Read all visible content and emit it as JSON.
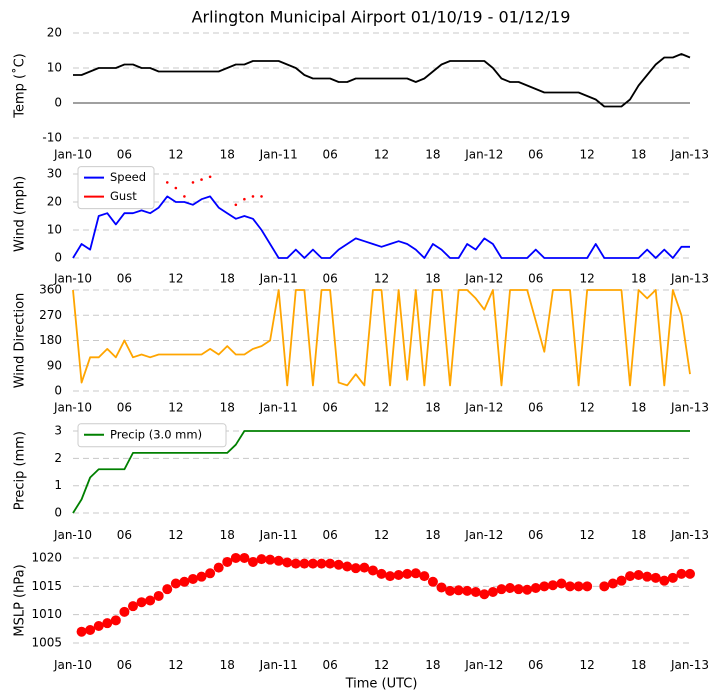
{
  "chart_data": [
    {
      "type": "line",
      "title": "Arlington Municipal Airport 01/10/19 - 01/12/19",
      "ylabel": "Temp (˚C)",
      "color": "#000000",
      "zero_line": true,
      "grid": true,
      "x": [
        0,
        1,
        2,
        3,
        4,
        5,
        6,
        7,
        8,
        9,
        10,
        11,
        12,
        13,
        14,
        15,
        16,
        17,
        18,
        19,
        20,
        21,
        22,
        23,
        24,
        25,
        26,
        27,
        28,
        29,
        30,
        31,
        32,
        33,
        34,
        35,
        36,
        37,
        38,
        39,
        40,
        41,
        42,
        43,
        44,
        45,
        46,
        47,
        48,
        49,
        50,
        51,
        52,
        53,
        54,
        55,
        56,
        57,
        58,
        59,
        60,
        61,
        62,
        63,
        64,
        65,
        66,
        67,
        68,
        69,
        70,
        71,
        72
      ],
      "values": [
        8,
        8,
        9,
        10,
        10,
        10,
        11,
        11,
        10,
        10,
        9,
        9,
        9,
        9,
        9,
        9,
        9,
        9,
        10,
        11,
        11,
        12,
        12,
        12,
        12,
        11,
        10,
        8,
        7,
        7,
        7,
        6,
        6,
        7,
        7,
        7,
        7,
        7,
        7,
        7,
        6,
        7,
        9,
        11,
        12,
        12,
        12,
        12,
        12,
        10,
        7,
        6,
        6,
        5,
        4,
        3,
        3,
        3,
        3,
        3,
        2,
        1,
        -1,
        -1,
        -1,
        1,
        5,
        8,
        11,
        13,
        13,
        14,
        13
      ],
      "xlim": [
        0,
        72
      ],
      "xticks": [
        {
          "value": 0,
          "label": "Jan-10"
        },
        {
          "value": 6,
          "label": "06"
        },
        12,
        18,
        {
          "value": 24,
          "label": "Jan-11"
        },
        {
          "value": 30,
          "label": "06"
        },
        {
          "value": 36,
          "label": "12"
        },
        {
          "value": 42,
          "label": "18"
        },
        {
          "value": 48,
          "label": "Jan-12"
        },
        {
          "value": 54,
          "label": "06"
        },
        {
          "value": 60,
          "label": "12"
        },
        {
          "value": 66,
          "label": "18"
        },
        {
          "value": 72,
          "label": "Jan-13"
        }
      ],
      "ylim": [
        -10,
        20
      ],
      "yticks": [
        -10,
        0,
        10,
        20
      ]
    },
    {
      "type": "line",
      "ylabel": "Wind (mph)",
      "grid": true,
      "legend": "upper left",
      "x": [
        0,
        1,
        2,
        3,
        4,
        5,
        6,
        7,
        8,
        9,
        10,
        11,
        12,
        13,
        14,
        15,
        16,
        17,
        18,
        19,
        20,
        21,
        22,
        23,
        24,
        25,
        26,
        27,
        28,
        29,
        30,
        31,
        32,
        33,
        34,
        35,
        36,
        37,
        38,
        39,
        40,
        41,
        42,
        43,
        44,
        45,
        46,
        47,
        48,
        49,
        50,
        51,
        52,
        53,
        54,
        55,
        56,
        57,
        58,
        59,
        60,
        61,
        62,
        63,
        64,
        65,
        66,
        67,
        68,
        69,
        70,
        71,
        72
      ],
      "series": [
        {
          "name": "Speed",
          "color": "#0000ff",
          "style": "line",
          "values": [
            0,
            5,
            3,
            15,
            16,
            12,
            16,
            16,
            17,
            16,
            18,
            22,
            20,
            20,
            19,
            21,
            22,
            18,
            16,
            14,
            15,
            14,
            10,
            5,
            0,
            0,
            3,
            0,
            3,
            0,
            0,
            3,
            5,
            7,
            6,
            5,
            4,
            5,
            6,
            5,
            3,
            0,
            5,
            3,
            0,
            0,
            5,
            3,
            7,
            5,
            0,
            0,
            0,
            0,
            3,
            0,
            0,
            0,
            0,
            0,
            0,
            5,
            0,
            0,
            0,
            0,
            0,
            3,
            0,
            3,
            0,
            4,
            4
          ]
        },
        {
          "name": "Gust",
          "color": "#ff0000",
          "style": "dots",
          "values": [
            null,
            null,
            null,
            null,
            null,
            null,
            null,
            null,
            null,
            null,
            null,
            27,
            25,
            22,
            27,
            28,
            29,
            null,
            null,
            19,
            21,
            22,
            22,
            null,
            null,
            null,
            null,
            null,
            null,
            null,
            null,
            null,
            null,
            null,
            null,
            null,
            null,
            null,
            null,
            null,
            null,
            null,
            null,
            null,
            null,
            null,
            null,
            null,
            null,
            null,
            null,
            null,
            null,
            null,
            null,
            null,
            null,
            null,
            null,
            null,
            null,
            null,
            null,
            null,
            null,
            null,
            null,
            null,
            null,
            null,
            null,
            null,
            null
          ]
        }
      ],
      "xlim": [
        0,
        72
      ],
      "xticks": [
        {
          "value": 0,
          "label": "Jan-10"
        },
        {
          "value": 6,
          "label": "06"
        },
        12,
        18,
        {
          "value": 24,
          "label": "Jan-11"
        },
        {
          "value": 30,
          "label": "06"
        },
        {
          "value": 36,
          "label": "12"
        },
        {
          "value": 42,
          "label": "18"
        },
        {
          "value": 48,
          "label": "Jan-12"
        },
        {
          "value": 54,
          "label": "06"
        },
        {
          "value": 60,
          "label": "12"
        },
        {
          "value": 66,
          "label": "18"
        },
        {
          "value": 72,
          "label": "Jan-13"
        }
      ],
      "ylim": [
        -1.5,
        33
      ],
      "yticks": [
        0,
        10,
        20,
        30
      ]
    },
    {
      "type": "line",
      "ylabel": "Wind Direction",
      "color": "#ffa500",
      "grid": true,
      "x": [
        0,
        1,
        2,
        3,
        4,
        5,
        6,
        7,
        8,
        9,
        10,
        11,
        12,
        13,
        14,
        15,
        16,
        17,
        18,
        19,
        20,
        21,
        22,
        23,
        24,
        25,
        26,
        27,
        28,
        29,
        30,
        31,
        32,
        33,
        34,
        35,
        36,
        37,
        38,
        39,
        40,
        41,
        42,
        43,
        44,
        45,
        46,
        47,
        48,
        49,
        50,
        51,
        52,
        53,
        54,
        55,
        56,
        57,
        58,
        59,
        60,
        61,
        62,
        63,
        64,
        65,
        66,
        67,
        68,
        69,
        70,
        71,
        72
      ],
      "values": [
        360,
        30,
        120,
        120,
        150,
        120,
        180,
        120,
        130,
        120,
        130,
        130,
        130,
        130,
        130,
        130,
        150,
        130,
        160,
        130,
        130,
        150,
        160,
        180,
        360,
        20,
        360,
        360,
        20,
        360,
        360,
        30,
        20,
        60,
        20,
        360,
        360,
        20,
        360,
        40,
        360,
        20,
        360,
        360,
        20,
        360,
        360,
        330,
        290,
        360,
        20,
        360,
        360,
        360,
        250,
        140,
        360,
        360,
        360,
        20,
        360,
        360,
        360,
        360,
        360,
        20,
        360,
        330,
        360,
        20,
        360,
        270,
        60
      ],
      "xlim": [
        0,
        72
      ],
      "xticks": [
        {
          "value": 0,
          "label": "Jan-10"
        },
        {
          "value": 6,
          "label": "06"
        },
        12,
        18,
        {
          "value": 24,
          "label": "Jan-11"
        },
        {
          "value": 30,
          "label": "06"
        },
        {
          "value": 36,
          "label": "12"
        },
        {
          "value": 42,
          "label": "18"
        },
        {
          "value": 48,
          "label": "Jan-12"
        },
        {
          "value": 54,
          "label": "06"
        },
        {
          "value": 60,
          "label": "12"
        },
        {
          "value": 66,
          "label": "18"
        },
        {
          "value": 72,
          "label": "Jan-13"
        }
      ],
      "ylim": [
        0,
        360
      ],
      "yticks": [
        0,
        90,
        180,
        270,
        360
      ]
    },
    {
      "type": "line",
      "ylabel": "Precip (mm)",
      "grid": true,
      "legend": "upper left",
      "x": [
        0,
        1,
        2,
        3,
        4,
        5,
        6,
        7,
        8,
        9,
        10,
        11,
        12,
        13,
        14,
        15,
        16,
        17,
        18,
        19,
        20,
        21,
        22,
        23,
        24,
        25,
        26,
        27,
        28,
        29,
        30,
        31,
        32,
        33,
        34,
        35,
        36,
        37,
        38,
        39,
        40,
        41,
        42,
        43,
        44,
        45,
        46,
        47,
        48,
        49,
        50,
        51,
        52,
        53,
        54,
        55,
        56,
        57,
        58,
        59,
        60,
        61,
        62,
        63,
        64,
        65,
        66,
        67,
        68,
        69,
        70,
        71,
        72
      ],
      "series": [
        {
          "name": "Precip (3.0 mm)",
          "color": "#008000",
          "style": "line",
          "values": [
            0,
            0.5,
            1.3,
            1.6,
            1.6,
            1.6,
            1.6,
            2.2,
            2.2,
            2.2,
            2.2,
            2.2,
            2.2,
            2.2,
            2.2,
            2.2,
            2.2,
            2.2,
            2.2,
            2.5,
            3,
            3,
            3,
            3,
            3,
            3,
            3,
            3,
            3,
            3,
            3,
            3,
            3,
            3,
            3,
            3,
            3,
            3,
            3,
            3,
            3,
            3,
            3,
            3,
            3,
            3,
            3,
            3,
            3,
            3,
            3,
            3,
            3,
            3,
            3,
            3,
            3,
            3,
            3,
            3,
            3,
            3,
            3,
            3,
            3,
            3,
            3,
            3,
            3,
            3,
            3,
            3,
            3
          ]
        }
      ],
      "xlim": [
        0,
        72
      ],
      "xticks": [
        {
          "value": 0,
          "label": "Jan-10"
        },
        {
          "value": 6,
          "label": "06"
        },
        12,
        18,
        {
          "value": 24,
          "label": "Jan-11"
        },
        {
          "value": 30,
          "label": "06"
        },
        {
          "value": 36,
          "label": "12"
        },
        {
          "value": 42,
          "label": "18"
        },
        {
          "value": 48,
          "label": "Jan-12"
        },
        {
          "value": 54,
          "label": "06"
        },
        {
          "value": 60,
          "label": "12"
        },
        {
          "value": 66,
          "label": "18"
        },
        {
          "value": 72,
          "label": "Jan-13"
        }
      ],
      "ylim": [
        -0.2,
        3.3
      ],
      "yticks": [
        0,
        1,
        2,
        3
      ]
    },
    {
      "type": "scatter",
      "ylabel": "MSLP (hPa)",
      "xlabel": "Time (UTC)",
      "color": "#ff0000",
      "grid": true,
      "x": [
        0,
        1,
        2,
        3,
        4,
        5,
        6,
        7,
        8,
        9,
        10,
        11,
        12,
        13,
        14,
        15,
        16,
        17,
        18,
        19,
        20,
        21,
        22,
        23,
        24,
        25,
        26,
        27,
        28,
        29,
        30,
        31,
        32,
        33,
        34,
        35,
        36,
        37,
        38,
        39,
        40,
        41,
        42,
        43,
        44,
        45,
        46,
        47,
        48,
        49,
        50,
        51,
        52,
        53,
        54,
        55,
        56,
        57,
        58,
        59,
        60,
        61,
        62,
        63,
        64,
        65,
        66,
        67,
        68,
        69,
        70,
        71,
        72
      ],
      "values": [
        null,
        1007,
        1007.3,
        1008,
        1008.5,
        1009,
        1010.5,
        1011.5,
        1012.2,
        1012.5,
        1013.3,
        1014.5,
        1015.5,
        1015.8,
        1016.3,
        1016.7,
        1017.3,
        1018.3,
        1019.3,
        1020,
        1020,
        1019.3,
        1019.8,
        1019.7,
        1019.5,
        1019.2,
        1019,
        1019,
        1019,
        1019,
        1019,
        1018.8,
        1018.5,
        1018.2,
        1018.3,
        1017.8,
        1017.2,
        1016.8,
        1017,
        1017.2,
        1017.3,
        1016.8,
        1015.8,
        1014.8,
        1014.2,
        1014.3,
        1014.2,
        1014,
        1013.6,
        1014,
        1014.5,
        1014.7,
        1014.5,
        1014.4,
        1014.7,
        1015,
        1015.2,
        1015.5,
        1015,
        1015,
        1015,
        null,
        1015,
        1015.5,
        1016,
        1016.8,
        1017,
        1016.7,
        1016.5,
        1016,
        1016.5,
        1017.2,
        1017.2
      ],
      "xlim": [
        0,
        72
      ],
      "xticks": [
        {
          "value": 0,
          "label": "Jan-10"
        },
        {
          "value": 6,
          "label": "06"
        },
        12,
        18,
        {
          "value": 24,
          "label": "Jan-11"
        },
        {
          "value": 30,
          "label": "06"
        },
        {
          "value": 36,
          "label": "12"
        },
        {
          "value": 42,
          "label": "18"
        },
        {
          "value": 48,
          "label": "Jan-12"
        },
        {
          "value": 54,
          "label": "06"
        },
        {
          "value": 60,
          "label": "12"
        },
        {
          "value": 66,
          "label": "18"
        },
        {
          "value": 72,
          "label": "Jan-13"
        }
      ],
      "ylim": [
        1004,
        1021
      ],
      "yticks": [
        1005,
        1010,
        1015,
        1020
      ]
    }
  ]
}
